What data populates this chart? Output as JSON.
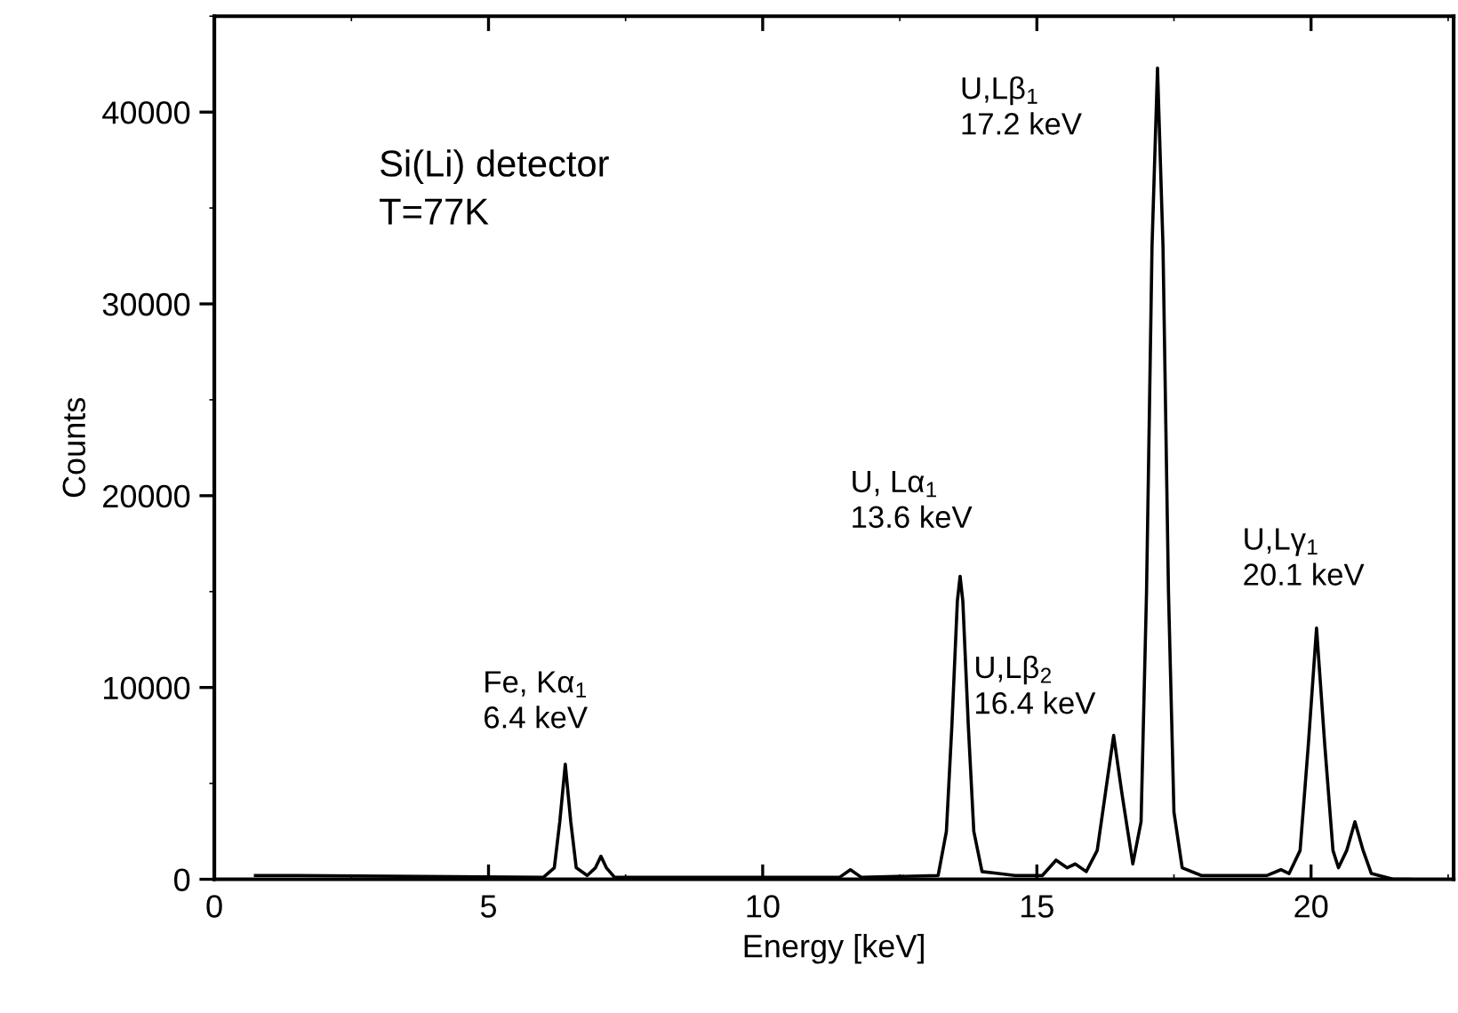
{
  "chart_data": {
    "type": "line",
    "xlabel": "Energy [keV]",
    "ylabel": "Counts",
    "xlim": [
      0,
      22.6
    ],
    "xticks": [
      0,
      5,
      10,
      15,
      20
    ],
    "ylim": [
      0,
      45000
    ],
    "yticks": [
      0,
      10000,
      20000,
      30000,
      40000
    ],
    "grid": false,
    "legend": false,
    "marker": "none",
    "line_style": "solid",
    "series": [
      {
        "color": "#000000",
        "x": [
          0.75,
          1.5,
          6.0,
          6.2,
          6.3,
          6.4,
          6.5,
          6.6,
          6.8,
          6.95,
          7.05,
          7.15,
          7.3,
          11.4,
          11.6,
          11.8,
          13.2,
          13.35,
          13.45,
          13.55,
          13.6,
          13.65,
          13.75,
          13.85,
          14.0,
          14.3,
          14.6,
          15.1,
          15.35,
          15.55,
          15.7,
          15.9,
          16.1,
          16.25,
          16.4,
          16.55,
          16.75,
          16.9,
          17.0,
          17.1,
          17.2,
          17.3,
          17.4,
          17.5,
          17.65,
          18.0,
          19.2,
          19.45,
          19.6,
          19.8,
          19.95,
          20.1,
          20.25,
          20.4,
          20.5,
          20.65,
          20.8,
          20.95,
          21.1,
          21.5,
          21.8
        ],
        "values": [
          200,
          200,
          100,
          600,
          3000,
          6000,
          3000,
          600,
          200,
          600,
          1200,
          600,
          100,
          100,
          500,
          100,
          200,
          2500,
          8000,
          14500,
          15800,
          14500,
          8000,
          2500,
          400,
          300,
          200,
          200,
          1000,
          600,
          800,
          400,
          1500,
          4500,
          7500,
          4500,
          800,
          3000,
          15000,
          33000,
          42300,
          33000,
          15000,
          3500,
          600,
          200,
          200,
          500,
          300,
          1500,
          7000,
          13100,
          7000,
          1500,
          600,
          1500,
          3000,
          1500,
          300,
          0,
          0
        ]
      }
    ],
    "annotations": [
      "Si(Li) detector\nT=77K",
      {
        "text": "Fe, Kα$_{1}$\n6.4 keV",
        "x": 6.4,
        "y": 6000
      },
      {
        "text": "U, Lα$_{1}$\n13.6 keV",
        "x": 13.6,
        "y": 15800
      },
      {
        "text": "U,Lβ$_{2}$\n16.4 keV",
        "x": 16.4,
        "y": 7450
      },
      {
        "text": "U,Lβ$_{1}$\n17.2 keV",
        "x": 17.2,
        "y": 42300
      },
      {
        "text": "U,Lγ$_{1}$\n20.1 keV",
        "x": 20.1,
        "y": 13100
      }
    ]
  }
}
